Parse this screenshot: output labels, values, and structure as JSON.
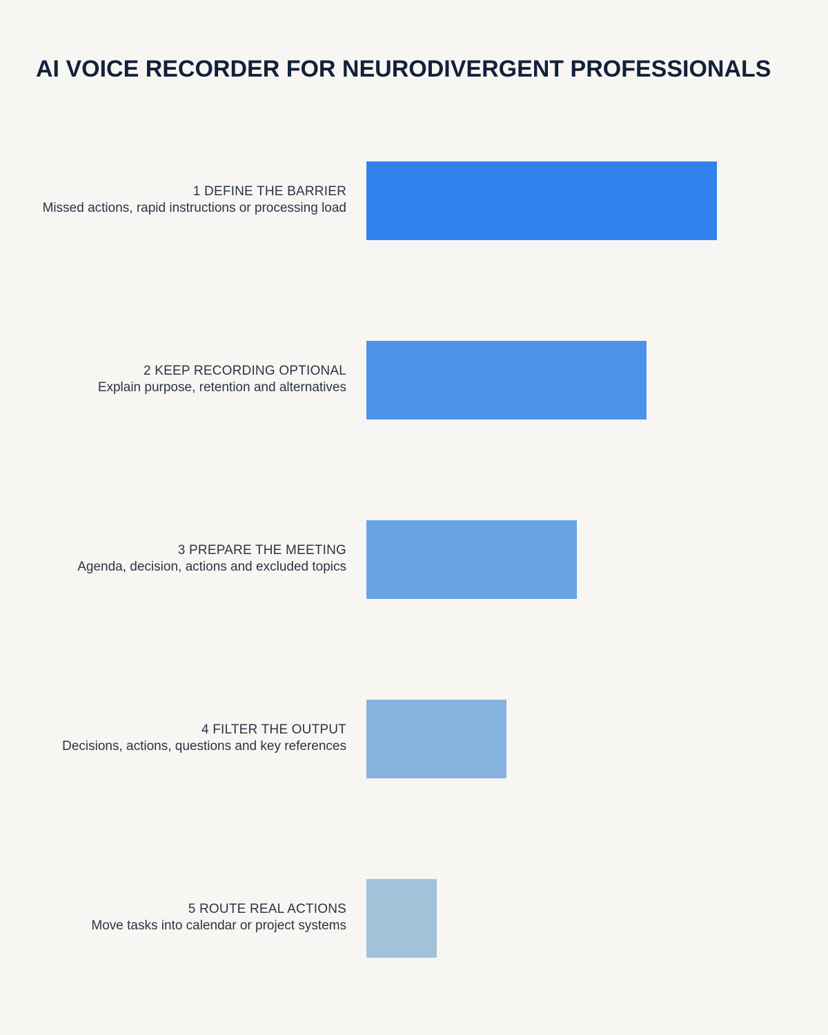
{
  "title": "AI VOICE RECORDER FOR NEURODIVERGENT PROFESSIONALS",
  "chart_data": {
    "type": "bar",
    "orientation": "horizontal",
    "categories": [
      "1 DEFINE THE BARRIER",
      "2 KEEP RECORDING OPTIONAL",
      "3 PREPARE THE MEETING",
      "4 FILTER THE OUTPUT",
      "5 ROUTE REAL ACTIONS"
    ],
    "descriptions": [
      "Missed actions, rapid instructions or processing load",
      "Explain purpose, retention and alternatives",
      "Agenda, decision, actions and excluded topics",
      "Decisions, actions, questions and key references",
      "Move tasks into calendar or project systems"
    ],
    "values": [
      5,
      4,
      3,
      2,
      1
    ],
    "xlim": [
      0,
      5
    ],
    "grid": false,
    "legend": "none",
    "colors": [
      "#3182ed",
      "#4c92e8",
      "#68a3e2",
      "#85b2de",
      "#a0c3da"
    ]
  }
}
